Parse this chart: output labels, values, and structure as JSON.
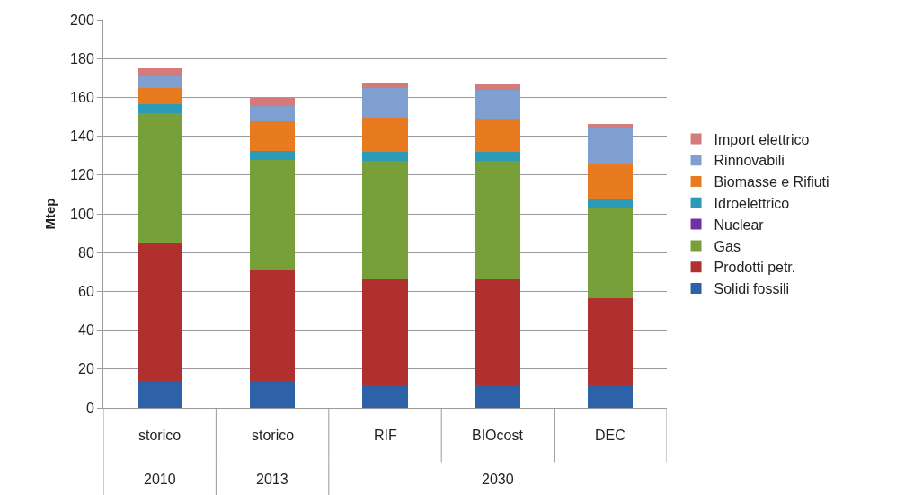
{
  "chart_data": {
    "type": "bar",
    "stacked": true,
    "ylabel": "Mtep",
    "categories": [
      "storico",
      "storico",
      "RIF",
      "BIOcost",
      "DEC"
    ],
    "annotations": [
      "2010",
      "2013",
      "2030"
    ],
    "series": [
      {
        "name": "Solidi fossili",
        "color": "#2e62a8",
        "values": [
          14,
          14,
          11.5,
          11.5,
          12
        ]
      },
      {
        "name": "Prodotti petr.",
        "color": "#b03030",
        "values": [
          71,
          57.5,
          54.5,
          54.5,
          44.5
        ]
      },
      {
        "name": "Gas",
        "color": "#77a03a",
        "values": [
          67,
          56.5,
          61.5,
          61.5,
          46.5
        ]
      },
      {
        "name": "Nuclear",
        "color": "#7030a0",
        "values": [
          0,
          0,
          0,
          0,
          0
        ]
      },
      {
        "name": "Idroelettrico",
        "color": "#2a9ab8",
        "values": [
          4.5,
          4.5,
          4.5,
          4.5,
          4.5
        ]
      },
      {
        "name": "Biomasse e Rifiuti",
        "color": "#e87a20",
        "values": [
          8.5,
          15,
          17.5,
          16.5,
          18
        ]
      },
      {
        "name": "Rinnovabili",
        "color": "#7f9fd0",
        "values": [
          6,
          8,
          15.5,
          15.5,
          18.5
        ]
      },
      {
        "name": "Import elettrico",
        "color": "#d47a7a",
        "values": [
          4,
          4,
          2.5,
          2.5,
          2.5
        ]
      }
    ],
    "ylim": [
      0,
      200
    ],
    "yticks": [
      0,
      20,
      40,
      60,
      80,
      100,
      120,
      140,
      160,
      180,
      200
    ],
    "grid": "y",
    "legend": "right"
  }
}
